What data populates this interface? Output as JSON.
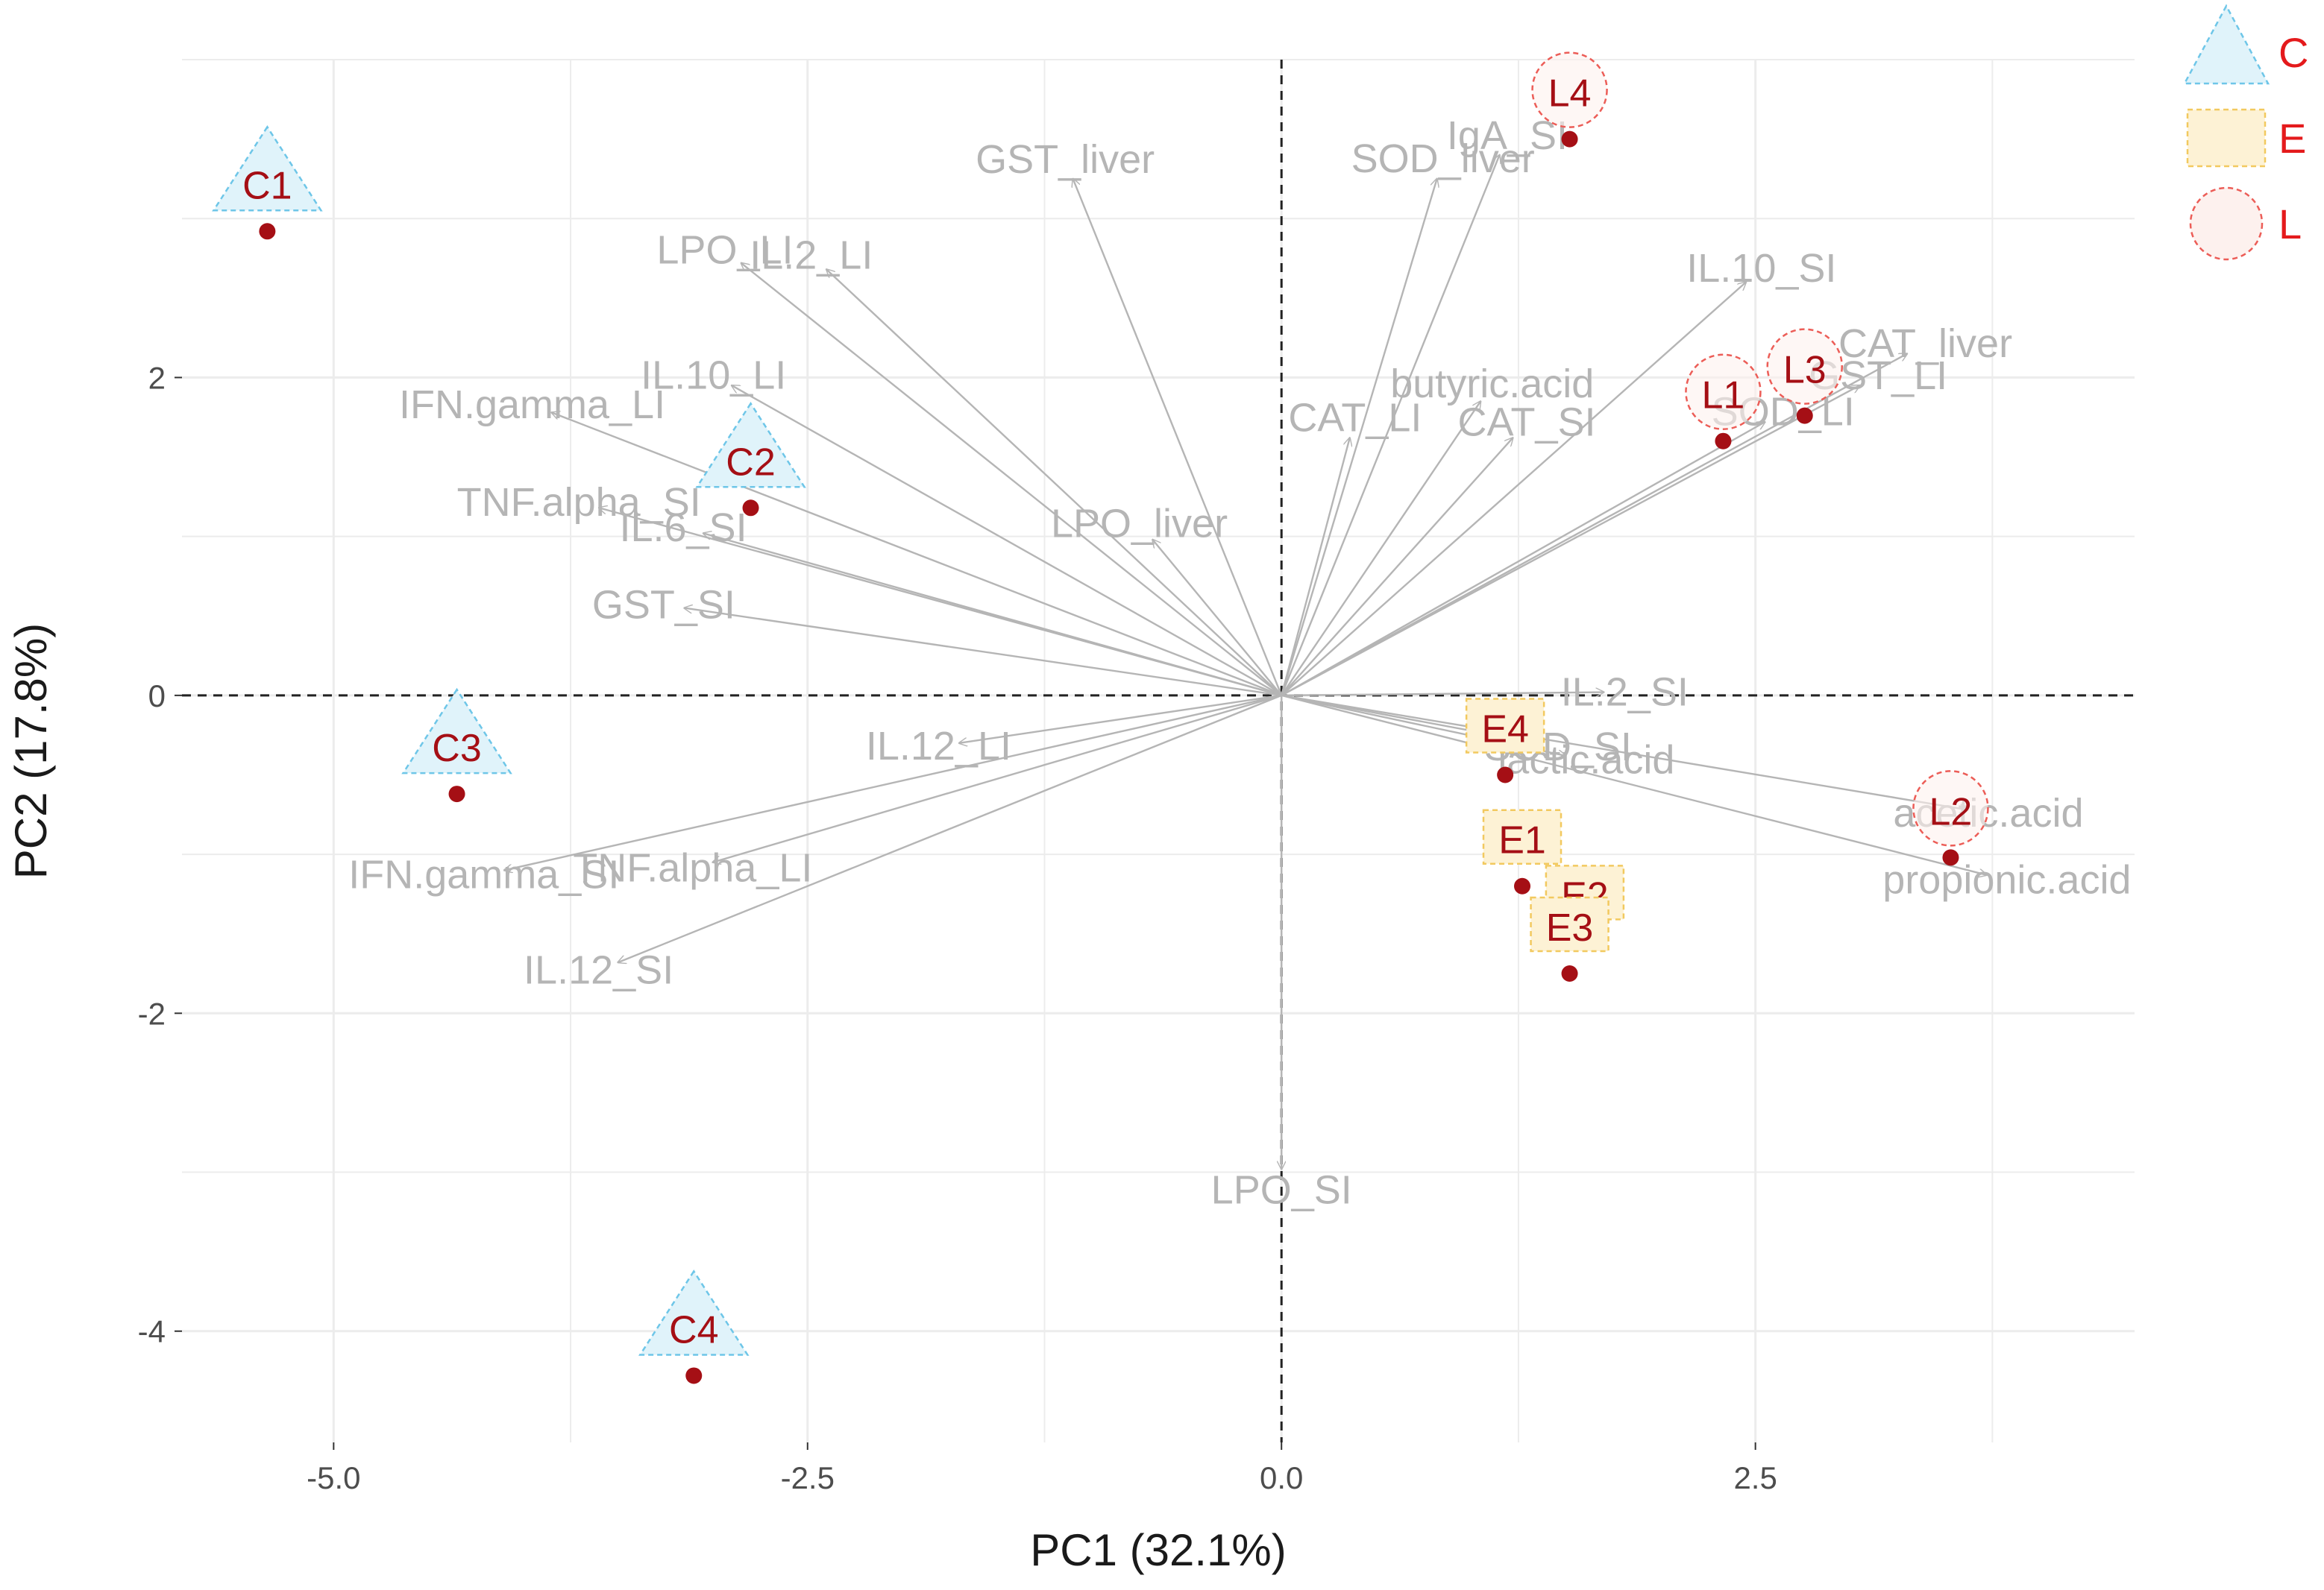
{
  "chart_data": {
    "type": "scatter",
    "subtype": "pca-biplot",
    "title": "",
    "xlabel": "PC1 (32.1%)",
    "ylabel": "PC2 (17.8%)",
    "xlim": [
      -5.8,
      4.5
    ],
    "ylim": [
      -4.7,
      4.0
    ],
    "x_ticks": [
      {
        "value": -5.0,
        "label": "-5.0"
      },
      {
        "value": -2.5,
        "label": "-2.5"
      },
      {
        "value": 0.0,
        "label": "0.0"
      },
      {
        "value": 2.5,
        "label": "2.5"
      }
    ],
    "y_ticks": [
      {
        "value": -4,
        "label": "-4"
      },
      {
        "value": -2,
        "label": "-2"
      },
      {
        "value": 0,
        "label": "0"
      },
      {
        "value": 2,
        "label": "2"
      }
    ],
    "grid": true,
    "reference_lines": {
      "x": 0,
      "y": 0,
      "style": "dashed"
    },
    "legend": {
      "position": "top-right",
      "entries": [
        {
          "name": "C",
          "shape": "triangle",
          "fill": "#e0f3fa",
          "stroke": "#6ec6e8"
        },
        {
          "name": "E",
          "shape": "square",
          "fill": "#fdf2d5",
          "stroke": "#f2c95f"
        },
        {
          "name": "L",
          "shape": "circle",
          "fill": "#fdf1ee",
          "stroke": "#ec5d57"
        }
      ]
    },
    "colors": {
      "point": "#a50f15",
      "sample_label": "#a50f15",
      "arrow": "#b5b5b5",
      "var_label": "#b5b5b5",
      "grid": "#ececec",
      "legend_text": "#e41a1c"
    },
    "samples": [
      {
        "name": "C1",
        "group": "C",
        "x": -5.35,
        "y": 2.92
      },
      {
        "name": "C2",
        "group": "C",
        "x": -2.8,
        "y": 1.18
      },
      {
        "name": "C3",
        "group": "C",
        "x": -4.35,
        "y": -0.62
      },
      {
        "name": "C4",
        "group": "C",
        "x": -3.1,
        "y": -4.28
      },
      {
        "name": "E1",
        "group": "E",
        "x": 1.27,
        "y": -1.2
      },
      {
        "name": "E2",
        "group": "E",
        "x": 1.6,
        "y": -1.55
      },
      {
        "name": "E3",
        "group": "E",
        "x": 1.52,
        "y": -1.75
      },
      {
        "name": "E4",
        "group": "E",
        "x": 1.18,
        "y": -0.5
      },
      {
        "name": "L1",
        "group": "L",
        "x": 2.33,
        "y": 1.6
      },
      {
        "name": "L2",
        "group": "L",
        "x": 3.53,
        "y": -1.02
      },
      {
        "name": "L3",
        "group": "L",
        "x": 2.76,
        "y": 1.76
      },
      {
        "name": "L4",
        "group": "L",
        "x": 1.52,
        "y": 3.5
      }
    ],
    "variables": [
      {
        "name": "GST_liver",
        "x": -1.1,
        "y": 3.25
      },
      {
        "name": "LPO_LI",
        "x": -2.85,
        "y": 2.72
      },
      {
        "name": "IL.2_LI",
        "x": -2.4,
        "y": 2.68
      },
      {
        "name": "IL.10_LI",
        "x": -2.9,
        "y": 1.95
      },
      {
        "name": "IFN.gamma_LI",
        "x": -3.85,
        "y": 1.78
      },
      {
        "name": "TNF.alpha_SI",
        "x": -3.6,
        "y": 1.18
      },
      {
        "name": "IL.6_SI",
        "x": -3.05,
        "y": 1.02
      },
      {
        "name": "GST_SI",
        "x": -3.15,
        "y": 0.55
      },
      {
        "name": "IL.12_LI",
        "x": -1.7,
        "y": -0.3
      },
      {
        "name": "TNF.alpha_LI",
        "x": -3.0,
        "y": -1.05
      },
      {
        "name": "IFN.gamma_SI",
        "x": -4.1,
        "y": -1.1
      },
      {
        "name": "IL.12_SI",
        "x": -3.5,
        "y": -1.68
      },
      {
        "name": "LPO_liver",
        "x": -0.68,
        "y": 0.98
      },
      {
        "name": "LPO_SI",
        "x": 0.0,
        "y": -2.98
      },
      {
        "name": "CAT_LI",
        "x": 0.36,
        "y": 1.62
      },
      {
        "name": "CAT_SI",
        "x": 1.22,
        "y": 1.62
      },
      {
        "name": "butyric.acid",
        "x": 1.05,
        "y": 1.85
      },
      {
        "name": "SOD_liver",
        "x": 0.82,
        "y": 3.25
      },
      {
        "name": "IgA_SI",
        "x": 1.15,
        "y": 3.4
      },
      {
        "name": "IL.10_SI",
        "x": 2.45,
        "y": 2.6
      },
      {
        "name": "CAT_liver",
        "x": 3.3,
        "y": 2.15
      },
      {
        "name": "GST_LI",
        "x": 3.05,
        "y": 1.95
      },
      {
        "name": "SOD_LI",
        "x": 2.55,
        "y": 1.72
      },
      {
        "name": "IL.2_SI",
        "x": 1.7,
        "y": 0.02
      },
      {
        "name": "SOD_SI",
        "x": 1.35,
        "y": -0.3
      },
      {
        "name": "lactic.acid",
        "x": 1.5,
        "y": -0.38
      },
      {
        "name": "acetic.acid",
        "x": 3.62,
        "y": -0.72
      },
      {
        "name": "propionic.acid",
        "x": 3.72,
        "y": -1.13
      }
    ]
  }
}
